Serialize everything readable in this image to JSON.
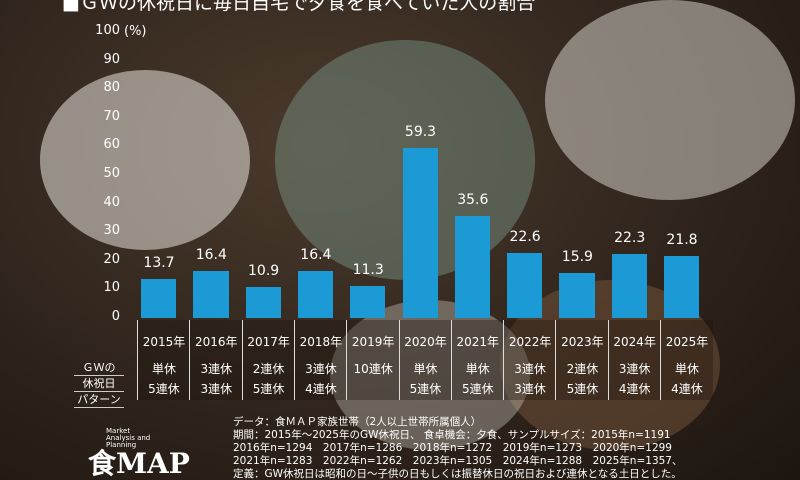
{
  "title": "■ＧＷの休祝日に毎日自宅で夕食を食べていた人の割合",
  "chart_data": {
    "type": "bar",
    "title": "■ＧＷの休祝日に毎日自宅で夕食を食べていた人の割合",
    "ylabel": "(%)",
    "ylim": [
      0,
      100
    ],
    "yticks": [
      "0",
      "10",
      "20",
      "30",
      "40",
      "50",
      "60",
      "70",
      "80",
      "90",
      "100"
    ],
    "categories": [
      "2015年",
      "2016年",
      "2017年",
      "2018年",
      "2019年",
      "2020年",
      "2021年",
      "2022年",
      "2023年",
      "2024年",
      "2025年"
    ],
    "values": [
      13.7,
      16.4,
      10.9,
      16.4,
      11.3,
      59.3,
      35.6,
      22.6,
      15.9,
      22.3,
      21.8
    ],
    "labels": [
      "13.7",
      "16.4",
      "10.9",
      "16.4",
      "11.3",
      "59.3",
      "35.6",
      "22.6",
      "15.9",
      "22.3",
      "21.8"
    ],
    "bar_color": "#1b9ad6"
  },
  "table": {
    "row_header": [
      "ＧＷの",
      "休祝日",
      "パターン"
    ],
    "pattern1": [
      "単休",
      "3連休",
      "2連休",
      "3連休",
      "10連休",
      "単休",
      "単休",
      "3連休",
      "2連休",
      "3連休",
      "単休"
    ],
    "pattern2": [
      "5連休",
      "3連休",
      "5連休",
      "4連休",
      "",
      "5連休",
      "5連休",
      "3連休",
      "5連休",
      "4連休",
      "4連休"
    ]
  },
  "notes": [
    "データ：食ＭＡＰ家族世帯（2人以上世帯所属個人）",
    "期間：2015年～2025年のGW休祝日、 食卓機会：夕食、サンプルサイズ：2015年n=1191",
    "2016年n=1294　2017年n=1286　2018年n=1272　2019年n=1273　2020年n=1299",
    "2021年n=1283　2022年n=1262　2023年n=1305　2024年n=1288　2025年n=1357、",
    "定義：GW休祝日は昭和の日～子供の日もしくは振替休日の祝日および連休となる土日とした。"
  ],
  "logo": {
    "main": "食MAP",
    "sub": "Market Analysis and Planning"
  }
}
